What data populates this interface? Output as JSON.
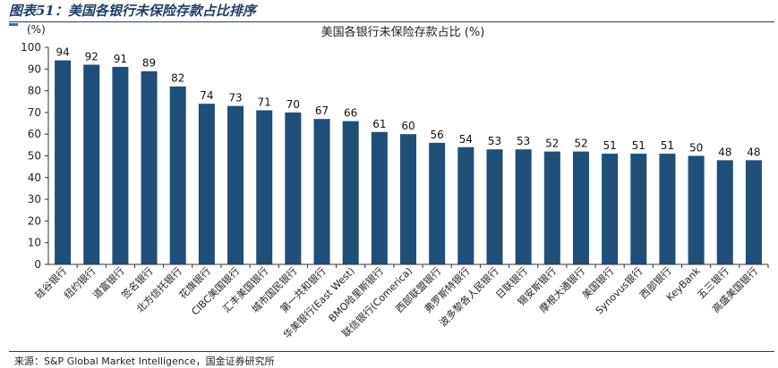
{
  "header": {
    "figure_title": "图表51：美国各银行未保险存款占比排序"
  },
  "footer": {
    "source": "来源：S&P Global Market Intelligence，国金证券研究所"
  },
  "colors": {
    "bar": "#1f4e79",
    "accent": "#2e6fb3",
    "rule": "#1f3f66"
  },
  "chart_data": {
    "type": "bar",
    "title": "美国各银行未保险存款占比 (%)",
    "ylabel": "(%)",
    "xlabel": "",
    "ylim": [
      0,
      100
    ],
    "yticks": [
      0,
      10,
      20,
      30,
      40,
      50,
      60,
      70,
      80,
      90,
      100
    ],
    "grid": false,
    "legend": "none",
    "categories": [
      "硅谷银行",
      "纽约银行",
      "道富银行",
      "签名银行",
      "北方信托银行",
      "花旗银行",
      "CIBC美国银行",
      "汇丰美国银行",
      "城市国民银行",
      "第一共和银行",
      "华美银行(East West)",
      "BMO哈里斯银行",
      "联信银行(Comerica)",
      "西部联盟银行",
      "弗罗斯特银行",
      "波多黎各人民银行",
      "日联银行",
      "锡安斯银行",
      "摩根大通银行",
      "美国银行",
      "Synovus银行",
      "西部银行",
      "KeyBank",
      "五三银行",
      "高盛美国银行"
    ],
    "values": [
      94,
      92,
      91,
      89,
      82,
      74,
      73,
      71,
      70,
      67,
      66,
      61,
      60,
      56,
      54,
      53,
      53,
      52,
      52,
      51,
      51,
      51,
      50,
      48,
      48
    ]
  }
}
